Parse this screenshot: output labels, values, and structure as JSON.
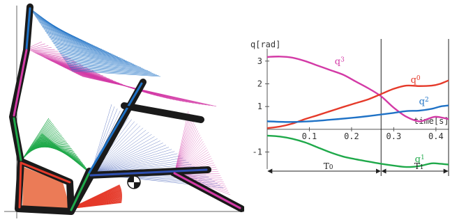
{
  "figure": {
    "left_panel": {
      "content": "multi-link robot motion stroboscopic overlay",
      "link_colors": [
        "#e53a2a",
        "#1fa94a",
        "#1f72c6",
        "#d33aa6",
        "#2f4fb0"
      ],
      "outline_color": "#1a1a1a",
      "com_marker": "center-of-mass-icon"
    }
  },
  "chart_data": {
    "type": "line",
    "ylabel": "q[rad]",
    "xlabel": "time[s]",
    "xlim": [
      0,
      0.43
    ],
    "ylim": [
      -1.75,
      3.3
    ],
    "xticks": [
      "0.1",
      "0.2",
      "0.3",
      "0.4"
    ],
    "xtick_values": [
      0.1,
      0.2,
      0.3,
      0.4
    ],
    "yticks": [
      "3",
      "2",
      "1",
      "-1"
    ],
    "ytick_values": [
      3,
      2,
      1,
      -1
    ],
    "phase_boundary_x": [
      0.27,
      0.43
    ],
    "phases": [
      {
        "label": "T0",
        "main": "T",
        "sub": "0",
        "start": 0.0,
        "end": 0.27
      },
      {
        "label": "T1",
        "main": "T",
        "sub": "1",
        "start": 0.27,
        "end": 0.43
      }
    ],
    "series": [
      {
        "name": "q3",
        "main": "q",
        "sub": "3",
        "color": "#d33aa6",
        "label_at": [
          0.16,
          2.85
        ],
        "x": [
          0,
          0.03,
          0.06,
          0.09,
          0.12,
          0.15,
          0.18,
          0.21,
          0.24,
          0.27,
          0.3,
          0.33,
          0.36,
          0.38,
          0.4,
          0.43
        ],
        "y": [
          3.18,
          3.2,
          3.15,
          3.0,
          2.8,
          2.6,
          2.4,
          2.1,
          1.8,
          1.45,
          0.95,
          0.55,
          0.35,
          0.45,
          0.55,
          0.45
        ]
      },
      {
        "name": "q0",
        "main": "q",
        "sub": "0",
        "color": "#e53a2a",
        "label_at": [
          0.34,
          2.05
        ],
        "x": [
          0,
          0.03,
          0.06,
          0.09,
          0.12,
          0.15,
          0.18,
          0.21,
          0.24,
          0.27,
          0.3,
          0.33,
          0.36,
          0.39,
          0.41,
          0.43
        ],
        "y": [
          0.05,
          0.12,
          0.25,
          0.45,
          0.62,
          0.8,
          0.98,
          1.15,
          1.32,
          1.55,
          1.78,
          1.92,
          1.9,
          1.92,
          2.0,
          2.15
        ]
      },
      {
        "name": "q2",
        "main": "q",
        "sub": "2",
        "color": "#1f72c6",
        "label_at": [
          0.36,
          1.1
        ],
        "x": [
          0,
          0.05,
          0.1,
          0.15,
          0.2,
          0.24,
          0.27,
          0.3,
          0.33,
          0.36,
          0.39,
          0.41,
          0.43
        ],
        "y": [
          0.35,
          0.32,
          0.35,
          0.42,
          0.5,
          0.58,
          0.65,
          0.72,
          0.8,
          0.82,
          0.9,
          1.0,
          1.05
        ]
      },
      {
        "name": "q1",
        "main": "q",
        "sub": "1",
        "color": "#1fa94a",
        "label_at": [
          0.35,
          -1.45
        ],
        "x": [
          0,
          0.03,
          0.06,
          0.09,
          0.12,
          0.15,
          0.18,
          0.21,
          0.24,
          0.27,
          0.3,
          0.33,
          0.36,
          0.39,
          0.41,
          0.43
        ],
        "y": [
          -0.28,
          -0.32,
          -0.42,
          -0.58,
          -0.8,
          -1.02,
          -1.2,
          -1.32,
          -1.42,
          -1.52,
          -1.6,
          -1.66,
          -1.62,
          -1.5,
          -1.52,
          -1.55
        ]
      }
    ]
  }
}
